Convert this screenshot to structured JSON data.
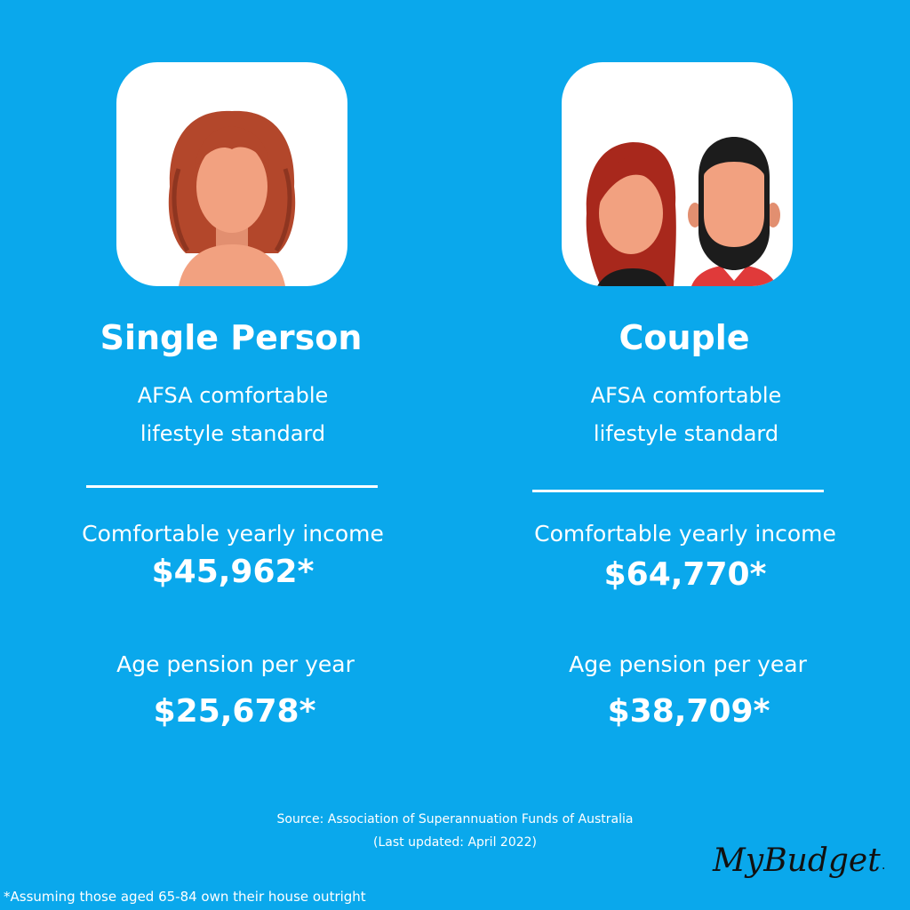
{
  "single": {
    "title": "Single Person",
    "subtitle_line1": "AFSA comfortable",
    "subtitle_line2": "lifestyle standard",
    "income_label": "Comfortable yearly income",
    "income_value": "$45,962*",
    "pension_label": "Age pension per year",
    "pension_value": "$25,678*"
  },
  "couple": {
    "title": "Couple",
    "subtitle_line1": "AFSA comfortable",
    "subtitle_line2": "lifestyle standard",
    "income_label": "Comfortable yearly income",
    "income_value": "$64,770*",
    "pension_label": "Age pension per year",
    "pension_value": "$38,709*"
  },
  "source": {
    "line1": "Source: Association of Superannuation Funds of Australia",
    "line2": "(Last updated: April 2022)"
  },
  "footnote": "*Assuming those aged 65-84 own their house outright",
  "logo": {
    "text": "MyBudget",
    "mark": "."
  },
  "colors": {
    "background": "#0aa8ec",
    "text": "#ffffff",
    "skin": "#f2a180",
    "hair_single": "#b3472b",
    "hair_woman": "#a8281c",
    "beard": "#1c1c1c",
    "shirt": "#e03a3a"
  },
  "icons": [
    "single-woman-avatar-icon",
    "couple-avatar-icon"
  ]
}
